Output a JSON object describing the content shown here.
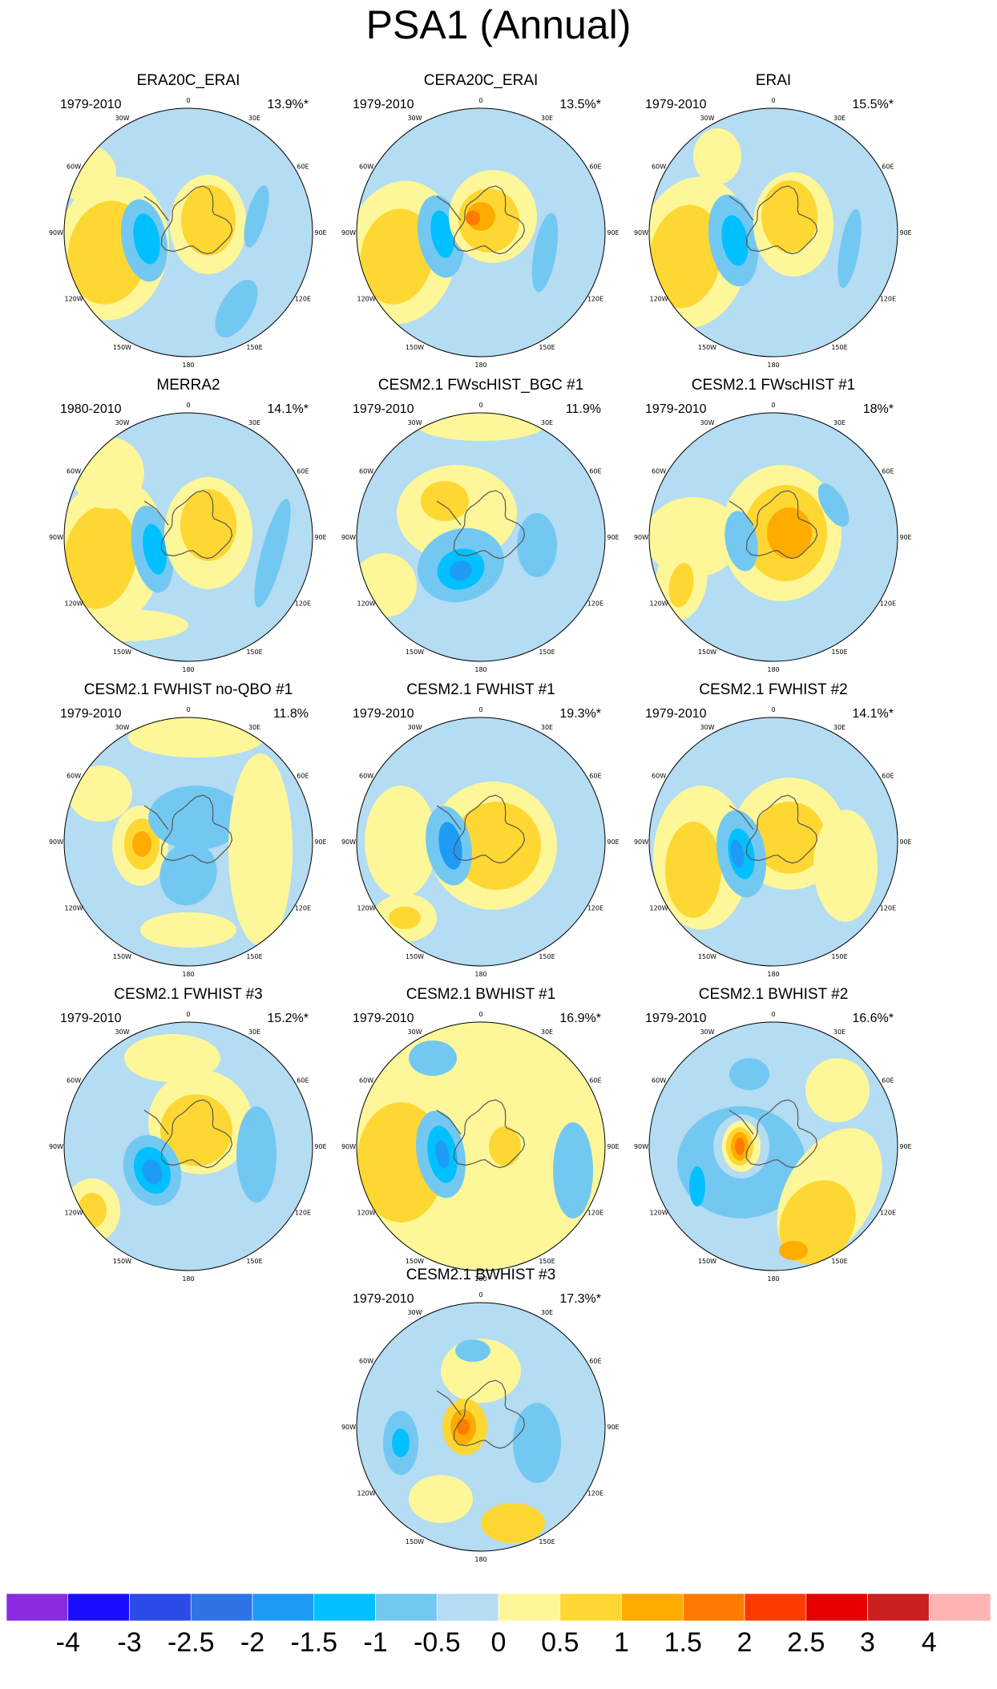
{
  "title": "PSA1 (Annual)",
  "chart_data": {
    "type": "heatmap",
    "title": "PSA1 (Annual)",
    "projection": "south polar stereographic",
    "longitude_labels": [
      "0",
      "30E",
      "60E",
      "90E",
      "120E",
      "150E",
      "180",
      "150W",
      "120W",
      "90W",
      "60W",
      "30W"
    ],
    "colorbar": {
      "tick_labels": [
        "-4",
        "-3",
        "-2.5",
        "-2",
        "-1.5",
        "-1",
        "-0.5",
        "0",
        "0.5",
        "1",
        "1.5",
        "2",
        "2.5",
        "3",
        "4"
      ],
      "colors": [
        "#8a2be2",
        "#1a0dff",
        "#2b4be8",
        "#2f74e6",
        "#1e9bf5",
        "#00c0ff",
        "#73c8f2",
        "#b4dcf2",
        "#fdf79a",
        "#ffd733",
        "#ffab00",
        "#ff7a00",
        "#ff3a00",
        "#e60000",
        "#cc1f1f",
        "#ffb4b4"
      ]
    },
    "panels": [
      {
        "title": "ERA20C_ERAI",
        "period": "1979-2010",
        "variance": "13.9%*"
      },
      {
        "title": "CERA20C_ERAI",
        "period": "1979-2010",
        "variance": "13.5%*"
      },
      {
        "title": "ERAI",
        "period": "1979-2010",
        "variance": "15.5%*"
      },
      {
        "title": "MERRA2",
        "period": "1980-2010",
        "variance": "14.1%*"
      },
      {
        "title": "CESM2.1 FWscHIST_BGC #1",
        "period": "1979-2010",
        "variance": "11.9%"
      },
      {
        "title": "CESM2.1 FWscHIST #1",
        "period": "1979-2010",
        "variance": "18%*"
      },
      {
        "title": "CESM2.1 FWHIST no-QBO #1",
        "period": "1979-2010",
        "variance": "11.8%"
      },
      {
        "title": "CESM2.1 FWHIST #1",
        "period": "1979-2010",
        "variance": "19.3%*"
      },
      {
        "title": "CESM2.1 FWHIST #2",
        "period": "1979-2010",
        "variance": "14.1%*"
      },
      {
        "title": "CESM2.1 FWHIST #3",
        "period": "1979-2010",
        "variance": "15.2%*"
      },
      {
        "title": "CESM2.1 BWHIST #1",
        "period": "1979-2010",
        "variance": "16.9%*"
      },
      {
        "title": "CESM2.1 BWHIST #2",
        "period": "1979-2010",
        "variance": "16.6%*"
      },
      {
        "title": "CESM2.1 BWHIST #3",
        "period": "1979-2010",
        "variance": "17.3%*"
      }
    ]
  }
}
